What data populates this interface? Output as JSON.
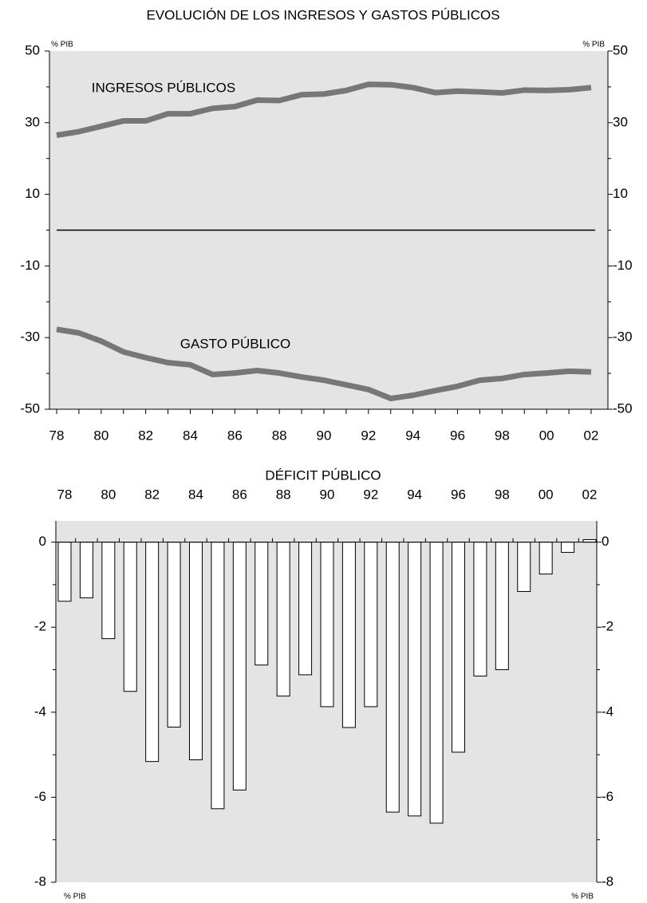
{
  "chart_data": [
    {
      "type": "line",
      "title": "EVOLUCIÓN DE LOS INGRESOS Y GASTOS PÚBLICOS",
      "categories": [
        "78",
        null,
        "80",
        null,
        "82",
        null,
        "84",
        null,
        "86",
        null,
        "88",
        null,
        "90",
        null,
        "92",
        null,
        "94",
        null,
        "96",
        null,
        "98",
        null,
        "00",
        null,
        "02"
      ],
      "series": [
        {
          "name": "INGRESOS PÚBLICOS",
          "color": "#777777",
          "values": [
            26.5,
            27.5,
            29,
            30.5,
            30.5,
            32.5,
            32.5,
            34,
            34.5,
            36.3,
            36.2,
            37.8,
            38,
            39,
            40.7,
            40.6,
            39.8,
            38.4,
            38.8,
            38.6,
            38.3,
            39.1,
            39,
            39.2,
            39.8
          ]
        },
        {
          "name": "GASTO PÚBLICO",
          "color": "#777777",
          "values": [
            -27.7,
            -28.7,
            -31,
            -34,
            -35.6,
            -37,
            -37.6,
            -40.3,
            -39.9,
            -39.2,
            -39.9,
            -41,
            -41.9,
            -43.2,
            -44.5,
            -47,
            -46.1,
            -44.8,
            -43.6,
            -41.9,
            -41.4,
            -40.3,
            -39.9,
            -39.4,
            -39.6
          ]
        }
      ],
      "ylim": [
        -50,
        50
      ],
      "yticks": [
        50,
        30,
        10,
        -10,
        -30,
        -50
      ],
      "yticks_minor": [
        40,
        20,
        0,
        -20,
        -40
      ],
      "reference_line": 0,
      "units_label": "% PIB"
    },
    {
      "type": "bar",
      "title": "DÉFICIT PÚBLICO",
      "categories": [
        "78",
        null,
        "80",
        null,
        "82",
        null,
        "84",
        null,
        "86",
        null,
        "88",
        null,
        "90",
        null,
        "92",
        null,
        "94",
        null,
        "96",
        null,
        "98",
        null,
        "00",
        null,
        "02"
      ],
      "values": [
        -1.39,
        -1.31,
        -2.27,
        -3.51,
        -5.16,
        -4.35,
        -5.12,
        -6.27,
        -5.83,
        -2.89,
        -3.62,
        -3.12,
        -3.87,
        -4.36,
        -3.87,
        -6.35,
        -6.44,
        -6.61,
        -4.94,
        -3.15,
        -3.0,
        -1.16,
        -0.75,
        -0.24,
        0.06
      ],
      "color": "#ffffff",
      "ylim": [
        -8,
        0.5
      ],
      "yticks": [
        0,
        -2,
        -4,
        -6,
        -8
      ],
      "yticks_minor": [
        -1,
        -3,
        -5,
        -7
      ],
      "units_label": "% PIB"
    }
  ]
}
